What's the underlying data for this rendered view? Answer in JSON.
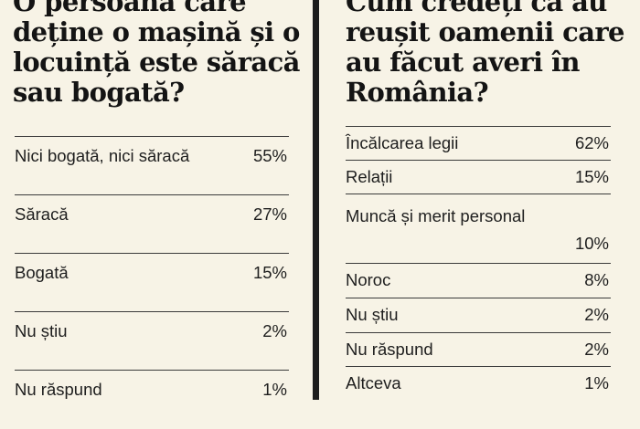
{
  "chart_data": [
    {
      "type": "table",
      "title": "O persoană care deține o mașină și o locuință este săracă sau bogată?",
      "rows": [
        {
          "label": "Nici bogată, nici săracă",
          "value": "55%"
        },
        {
          "label": "Săracă",
          "value": "27%"
        },
        {
          "label": "Bogată",
          "value": "15%"
        },
        {
          "label": "Nu știu",
          "value": "2%"
        },
        {
          "label": "Nu răspund",
          "value": "1%"
        }
      ]
    },
    {
      "type": "table",
      "title": "Cum credeți că au reușit oamenii care au făcut averi în România?",
      "rows": [
        {
          "label": "Încălcarea legii",
          "value": "62%"
        },
        {
          "label": "Relații",
          "value": "15%"
        },
        {
          "label": "Muncă și merit personal",
          "value": "10%"
        },
        {
          "label": "Noroc",
          "value": "8%"
        },
        {
          "label": "Nu știu",
          "value": "2%"
        },
        {
          "label": "Nu răspund",
          "value": "2%"
        },
        {
          "label": "Altceva",
          "value": "1%"
        }
      ]
    }
  ],
  "colors": {
    "background": "#f7f3e6",
    "text": "#1b1b1b",
    "divider": "#1c1c1c"
  }
}
